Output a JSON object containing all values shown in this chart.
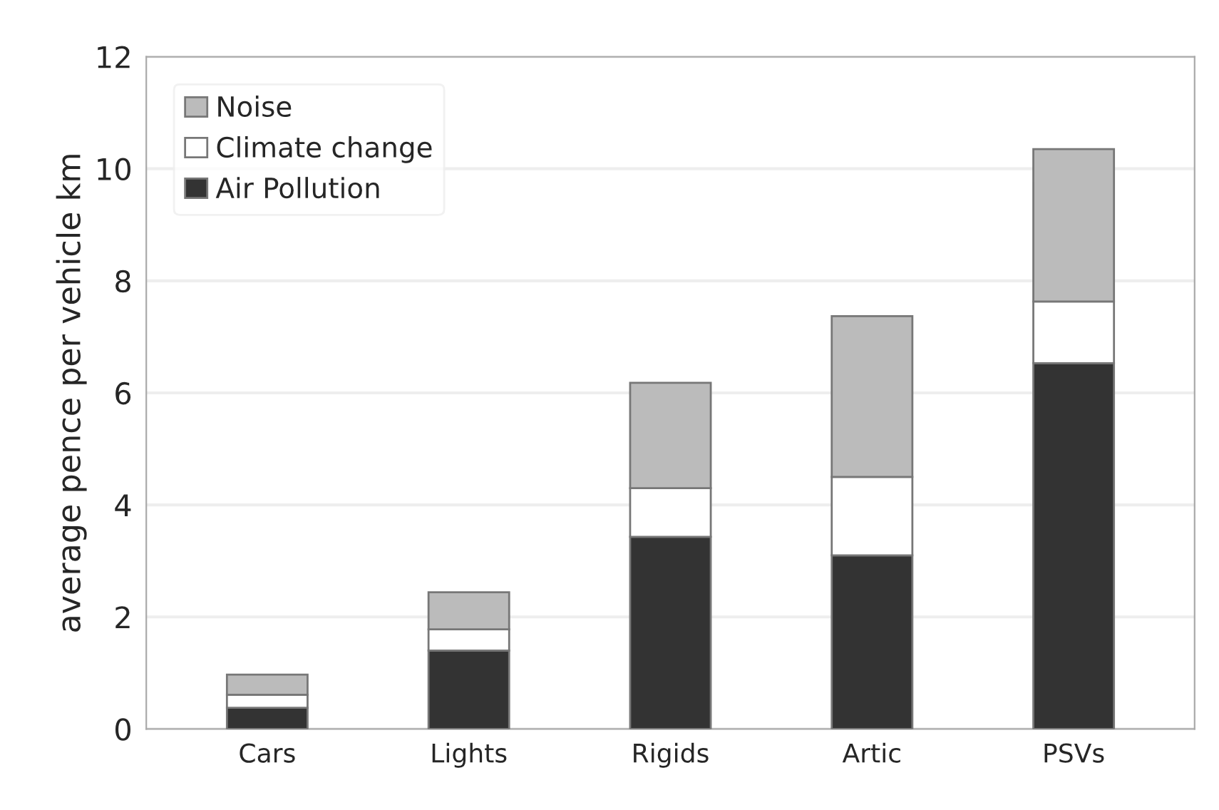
{
  "chart_data": {
    "type": "bar",
    "stacked": true,
    "ylabel": "average pence per vehicle km",
    "categories": [
      "Cars",
      "Lights",
      "Rigids",
      "Artic",
      "PSVs"
    ],
    "series": [
      {
        "name": "Air Pollution",
        "color": "#333333",
        "values": [
          0.38,
          1.4,
          3.43,
          3.1,
          6.53
        ]
      },
      {
        "name": "Climate change",
        "color": "#ffffff",
        "values": [
          0.23,
          0.38,
          0.87,
          1.4,
          1.1
        ]
      },
      {
        "name": "Noise",
        "color": "#bbbbbb",
        "values": [
          0.36,
          0.66,
          1.88,
          2.87,
          2.72
        ]
      }
    ],
    "ylim": [
      0,
      12
    ],
    "yticks": [
      0,
      2,
      4,
      6,
      8,
      10,
      12
    ],
    "grid": "y",
    "legend": "top left"
  }
}
